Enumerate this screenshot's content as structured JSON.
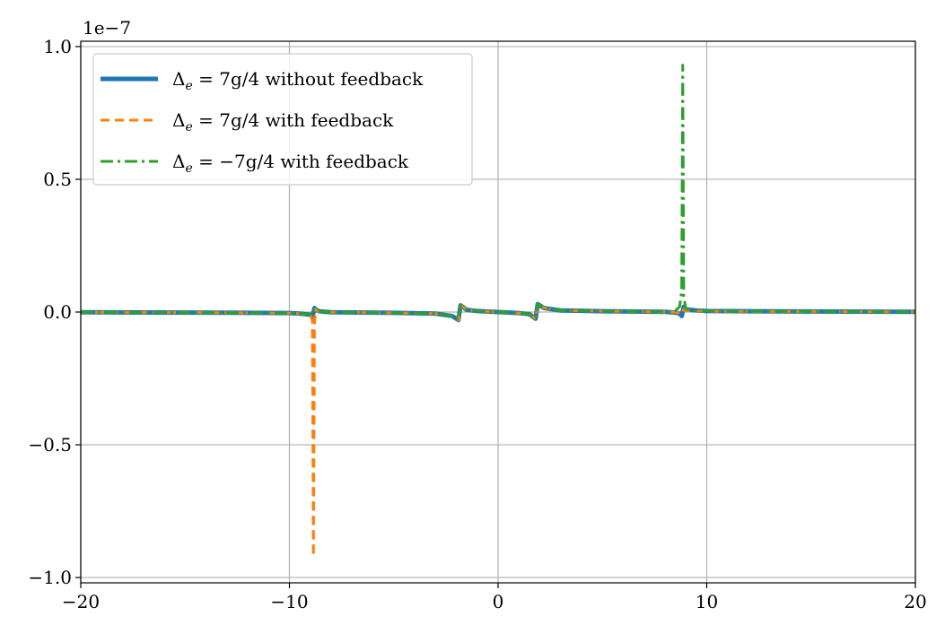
{
  "chart_data": {
    "type": "line",
    "title": "",
    "xlabel": "",
    "ylabel": "",
    "xlim": [
      -20,
      20
    ],
    "ylim": [
      -1.02,
      1.02
    ],
    "y_scale_offset": "1e−7",
    "grid": true,
    "legend_placement": "upper-left",
    "x_ticks": [
      -20,
      -10,
      0,
      10,
      20
    ],
    "x_tick_labels": [
      "−20",
      "−10",
      "0",
      "10",
      "20"
    ],
    "y_ticks": [
      -1.0,
      -0.5,
      0.0,
      0.5,
      1.0
    ],
    "y_tick_labels": [
      "−1.0",
      "−0.5",
      "0.0",
      "0.5",
      "1.0"
    ],
    "series": [
      {
        "name": "Δe = 7g/4 without feedback",
        "legend_parts": {
          "sym": "Δ",
          "sub": "e",
          "rest": " = 7g/4 without feedback"
        },
        "color": "#1f77b4",
        "style": "solid",
        "x": [
          -20,
          -15,
          -12,
          -10,
          -9.5,
          -9.0,
          -8.9,
          -8.8,
          -8.7,
          -8.5,
          -8.0,
          -5,
          -3,
          -2.2,
          -2.0,
          -1.9,
          -1.8,
          -1.7,
          -1.5,
          -1.0,
          0,
          1.0,
          1.5,
          1.7,
          1.8,
          1.9,
          2.0,
          2.2,
          3,
          5,
          8.0,
          8.5,
          8.7,
          8.8,
          8.9,
          9.0,
          9.5,
          10,
          12,
          15,
          20
        ],
        "y": [
          -0.001,
          -0.002,
          -0.003,
          -0.004,
          -0.006,
          -0.01,
          -0.02,
          0.015,
          0.006,
          0.002,
          -0.001,
          -0.003,
          -0.006,
          -0.015,
          -0.025,
          -0.03,
          0.025,
          0.02,
          0.008,
          0.004,
          0.0,
          -0.004,
          -0.008,
          -0.02,
          -0.025,
          0.03,
          0.025,
          0.015,
          0.006,
          0.003,
          0.001,
          -0.002,
          -0.006,
          -0.015,
          0.02,
          0.01,
          0.006,
          0.004,
          0.003,
          0.002,
          0.001
        ]
      },
      {
        "name": "Δe = 7g/4 with feedback",
        "legend_parts": {
          "sym": "Δ",
          "sub": "e",
          "rest": " = 7g/4 with feedback"
        },
        "color": "#ff7f0e",
        "style": "dashed",
        "x": [
          -20,
          -15,
          -12,
          -10,
          -9.5,
          -9.0,
          -8.9,
          -8.85,
          -8.8,
          -8.75,
          -8.7,
          -8.5,
          -8.0,
          -5,
          -3,
          -2.2,
          -2.0,
          -1.9,
          -1.8,
          -1.7,
          -1.5,
          -1.0,
          0,
          1.0,
          1.5,
          1.7,
          1.8,
          1.9,
          2.0,
          2.2,
          3,
          5,
          8.0,
          8.5,
          8.7,
          8.8,
          8.9,
          9.0,
          9.5,
          10,
          12,
          15,
          20
        ],
        "y": [
          -0.001,
          -0.002,
          -0.003,
          -0.004,
          -0.006,
          -0.012,
          -0.03,
          -0.92,
          -0.05,
          0.01,
          0.004,
          0.001,
          -0.001,
          -0.003,
          -0.006,
          -0.015,
          -0.025,
          -0.03,
          0.025,
          0.02,
          0.008,
          0.004,
          0.0,
          -0.004,
          -0.008,
          -0.02,
          -0.025,
          0.03,
          0.025,
          0.015,
          0.006,
          0.003,
          0.001,
          -0.001,
          -0.004,
          -0.008,
          0.01,
          0.006,
          0.004,
          0.003,
          0.002,
          0.002,
          0.001
        ]
      },
      {
        "name": "Δe = −7g/4 with feedback",
        "legend_parts": {
          "sym": "Δ",
          "sub": "e",
          "rest": " = −7g/4 with feedback"
        },
        "color": "#2ca02c",
        "style": "dashdot",
        "x": [
          -20,
          -15,
          -12,
          -10,
          -9.5,
          -9.0,
          -8.9,
          -8.8,
          -8.7,
          -8.5,
          -8.0,
          -5,
          -3,
          -2.2,
          -2.0,
          -1.9,
          -1.8,
          -1.7,
          -1.5,
          -1.0,
          0,
          1.0,
          1.5,
          1.7,
          1.8,
          1.9,
          2.0,
          2.2,
          3,
          5,
          8.0,
          8.5,
          8.7,
          8.8,
          8.85,
          8.9,
          9.0,
          9.5,
          10,
          12,
          15,
          20
        ],
        "y": [
          -0.001,
          -0.002,
          -0.003,
          -0.004,
          -0.006,
          -0.008,
          -0.012,
          0.01,
          0.005,
          0.002,
          -0.001,
          -0.003,
          -0.006,
          -0.015,
          -0.025,
          -0.03,
          0.025,
          0.02,
          0.008,
          0.004,
          0.0,
          -0.004,
          -0.008,
          -0.02,
          -0.025,
          0.03,
          0.025,
          0.015,
          0.006,
          0.003,
          0.002,
          0.005,
          0.02,
          0.08,
          0.93,
          0.06,
          0.012,
          0.006,
          0.004,
          0.003,
          0.002,
          0.001
        ]
      }
    ]
  }
}
